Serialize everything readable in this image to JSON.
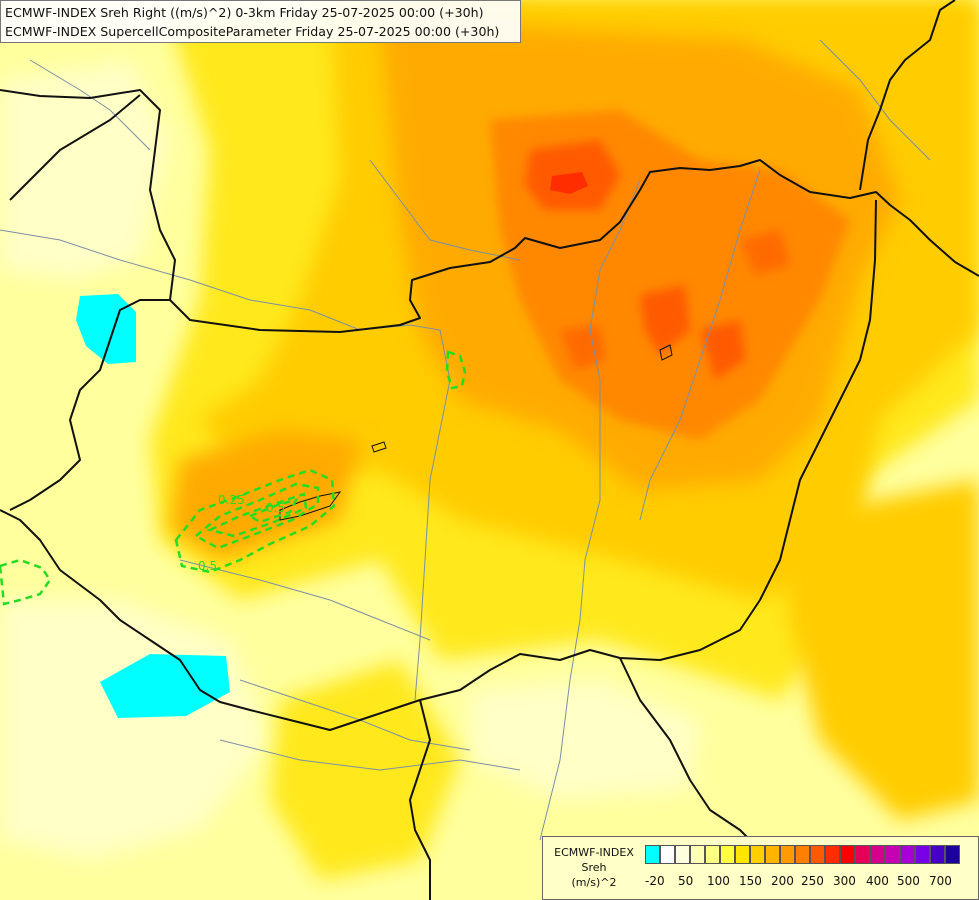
{
  "header": {
    "line1": "ECMWF-INDEX Sreh Right ((m/s)^2) 0-3km Friday 25-07-2025 00:00 (+30h)",
    "line2": "ECMWF-INDEX SupercellCompositeParameter Friday 25-07-2025 00:00 (+30h)"
  },
  "legend": {
    "title_line1": "ECMWF-INDEX",
    "title_line2": "Sreh",
    "title_line3": "(m/s)^2",
    "colors": [
      "#00ffff",
      "#ffffff",
      "#ffffe0",
      "#ffffb4",
      "#ffff80",
      "#ffff40",
      "#ffe600",
      "#ffcf00",
      "#ffb400",
      "#ff9a00",
      "#ff7f00",
      "#ff5a00",
      "#ff2d00",
      "#ff0000",
      "#e6005a",
      "#d6008c",
      "#c800b4",
      "#aa00d8",
      "#7800e6",
      "#4600c8",
      "#1e009b"
    ],
    "ticks": [
      "-20",
      "50",
      "100",
      "150",
      "200",
      "250",
      "300",
      "400",
      "500",
      "700"
    ]
  },
  "contours": {
    "label_a": "0.25",
    "label_b": "0.5",
    "label_c": "0.5"
  },
  "colors": {
    "contour": "#22dd22",
    "border": "#111111",
    "river": "#7a8fa8",
    "background": "#ffff9e"
  }
}
